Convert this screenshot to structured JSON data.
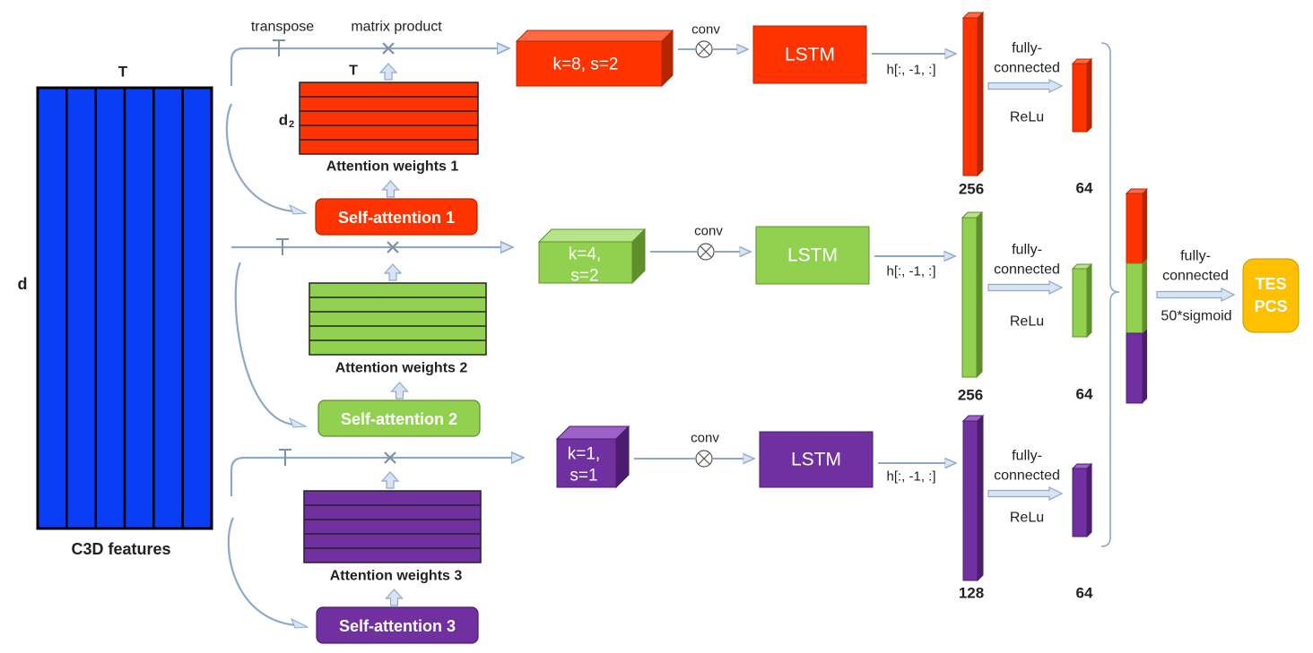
{
  "c3d": {
    "label": "C3D features",
    "t_label": "T",
    "d_label": "d",
    "column_count": 6
  },
  "top_labels": {
    "transpose": "transpose",
    "matrix_product": "matrix product"
  },
  "branches": [
    {
      "color": "#FF3300",
      "dark": "#B52500",
      "light": "#FF6A45",
      "attention_label": "Attention weights 1",
      "self_attention": "Self-attention 1",
      "t_label": "T",
      "d2_label": "d",
      "d2_sub": "2",
      "conv_lines": [
        "k=8, s=2"
      ],
      "conv_label": "conv",
      "lstm": "LSTM",
      "h_label": "h[:, -1, :]",
      "feat_size": "256",
      "fc_label": [
        "fully-",
        "connected"
      ],
      "relu": "ReLu",
      "out_size": "64"
    },
    {
      "color": "#92D050",
      "dark": "#5E8F2C",
      "light": "#B7E38A",
      "attention_label": "Attention weights 2",
      "self_attention": "Self-attention 2",
      "conv_lines": [
        "k=4,",
        "s=2"
      ],
      "conv_label": "conv",
      "lstm": "LSTM",
      "h_label": "h[:, -1, :]",
      "feat_size": "256",
      "fc_label": [
        "fully-",
        "connected"
      ],
      "relu": "ReLu",
      "out_size": "64"
    },
    {
      "color": "#7030A0",
      "dark": "#4A1D6E",
      "light": "#9C62C7",
      "attention_label": "Attention weights 3",
      "self_attention": "Self-attention 3",
      "conv_lines": [
        "k=1,",
        "s=1"
      ],
      "conv_label": "conv",
      "lstm": "LSTM",
      "h_label": "h[:, -1, :]",
      "feat_size": "128",
      "fc_label": [
        "fully-",
        "connected"
      ],
      "relu": "ReLu",
      "out_size": "64"
    }
  ],
  "final": {
    "fc_label": [
      "fully-",
      "connected"
    ],
    "activation": "50*sigmoid",
    "output": [
      "TES",
      "PCS"
    ]
  },
  "colors": {
    "c3d_blue": "#0A3EF5",
    "arrow_fill": "#DAE3F3",
    "arrow_stroke": "#8EA9C8",
    "output_yellow": "#FFC000"
  }
}
